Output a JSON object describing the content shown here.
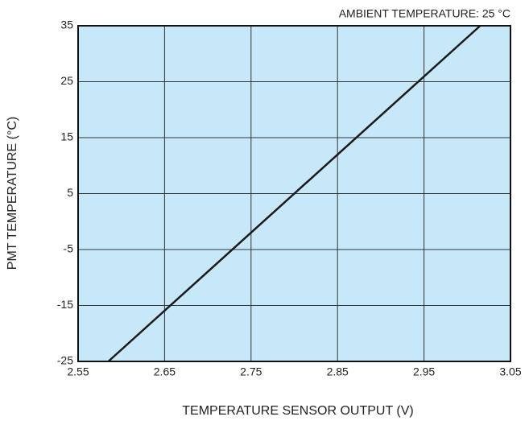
{
  "chart_data": {
    "type": "line",
    "annotation": "AMBIENT TEMPERATURE: 25 °C",
    "xlabel": "TEMPERATURE SENSOR OUTPUT (V)",
    "ylabel": "PMT TEMPERATURE (°C)",
    "x": [
      2.585,
      3.015
    ],
    "values": [
      -25,
      35
    ],
    "color": "#1a1a1a",
    "xlim": [
      2.55,
      3.05
    ],
    "xticks": [
      2.55,
      2.65,
      2.75,
      2.85,
      2.95,
      3.05
    ],
    "ylim": [
      -25,
      35
    ],
    "yticks": [
      -25,
      -15,
      -5,
      5,
      15,
      25,
      35
    ],
    "grid": true,
    "background": "#c6e8f8"
  }
}
